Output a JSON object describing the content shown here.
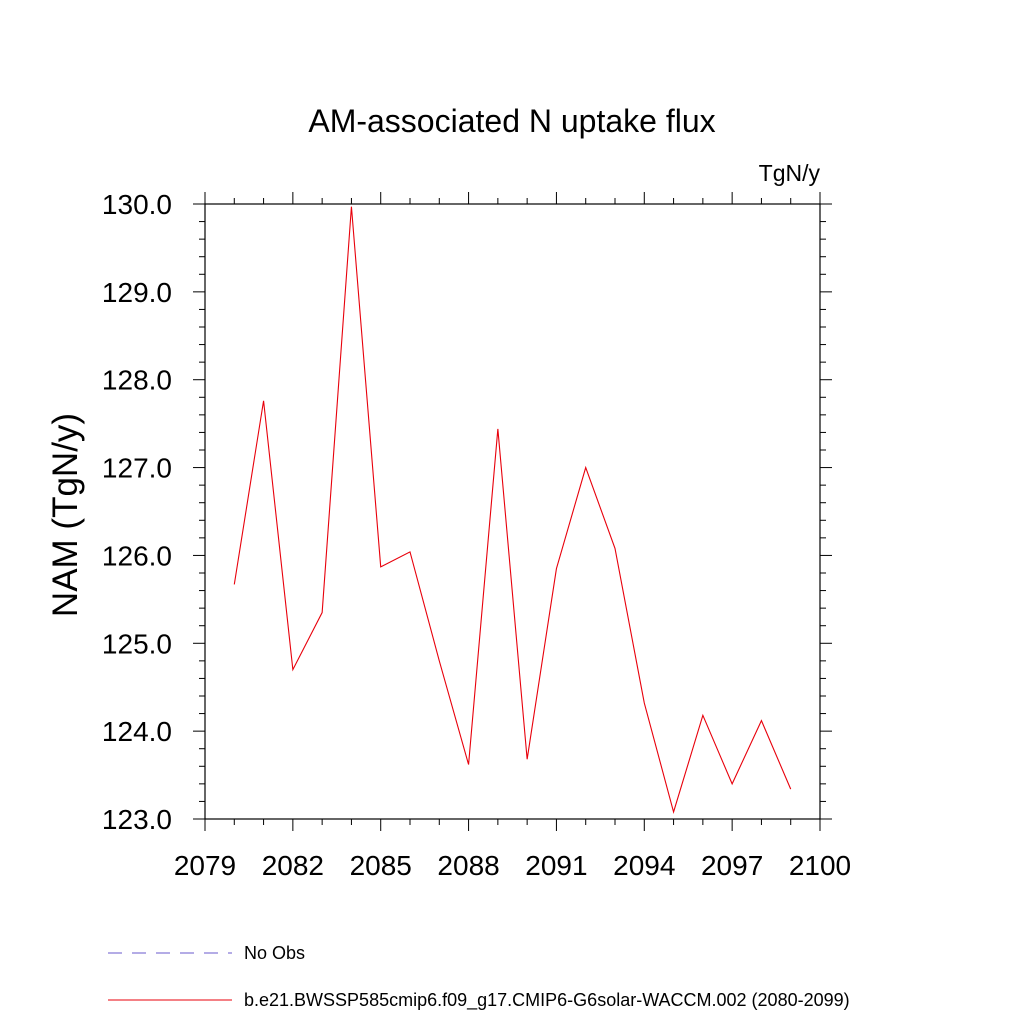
{
  "chart_data": {
    "type": "line",
    "title": "AM-associated N uptake flux",
    "units_label": "TgN/y",
    "ylabel": "NAM  (TgN/y)",
    "xlabel": "",
    "xlim": [
      2079,
      2100
    ],
    "ylim": [
      123.0,
      130.0
    ],
    "x_ticks": [
      2079,
      2082,
      2085,
      2088,
      2091,
      2094,
      2097,
      2100
    ],
    "y_ticks": [
      "123.0",
      "124.0",
      "125.0",
      "126.0",
      "127.0",
      "128.0",
      "129.0",
      "130.0"
    ],
    "series": [
      {
        "name": "b.e21.BWSSP585cmip6.f09_g17.CMIP6-G6solar-WACCM.002 (2080-2099)",
        "color": "#e8000b",
        "x": [
          2080,
          2081,
          2082,
          2083,
          2084,
          2085,
          2086,
          2087,
          2088,
          2089,
          2090,
          2091,
          2092,
          2093,
          2094,
          2095,
          2096,
          2097,
          2098,
          2099
        ],
        "values": [
          125.67,
          127.76,
          124.7,
          125.35,
          129.97,
          125.87,
          126.04,
          124.8,
          123.62,
          127.44,
          123.68,
          125.85,
          127.0,
          126.08,
          124.32,
          123.08,
          124.18,
          123.4,
          124.12,
          123.34
        ]
      }
    ],
    "legend": [
      {
        "label": "No Obs",
        "style": "dashed",
        "color": "#6a5acd"
      },
      {
        "label": "b.e21.BWSSP585cmip6.f09_g17.CMIP6-G6solar-WACCM.002 (2080-2099)",
        "style": "solid",
        "color": "#e8000b"
      }
    ]
  }
}
